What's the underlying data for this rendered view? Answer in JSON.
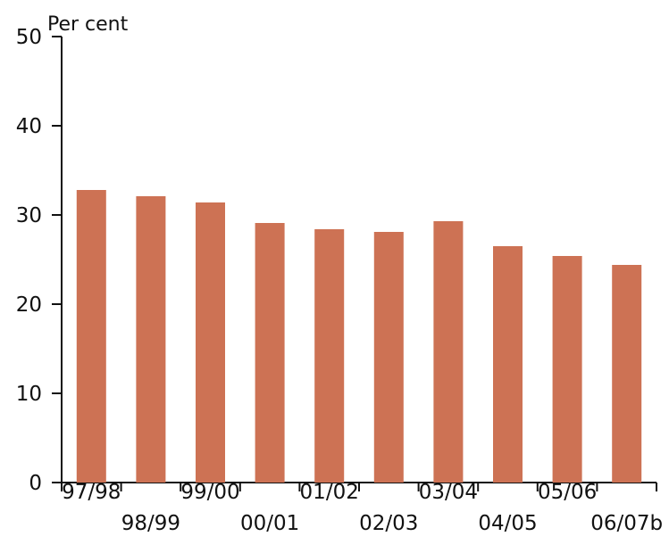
{
  "chart_data": {
    "type": "bar",
    "categories": [
      "97/98",
      "98/99",
      "99/00",
      "00/01",
      "01/02",
      "02/03",
      "03/04",
      "04/05",
      "05/06",
      "06/07b"
    ],
    "values": [
      32.8,
      32.1,
      31.4,
      29.1,
      28.4,
      28.1,
      29.3,
      26.5,
      25.4,
      24.4
    ],
    "ylabel": "Per cent",
    "ylim": [
      0,
      50
    ],
    "yticks": [
      0,
      10,
      20,
      30,
      40,
      50
    ],
    "grid": false,
    "bar_color": "#cd7254"
  }
}
